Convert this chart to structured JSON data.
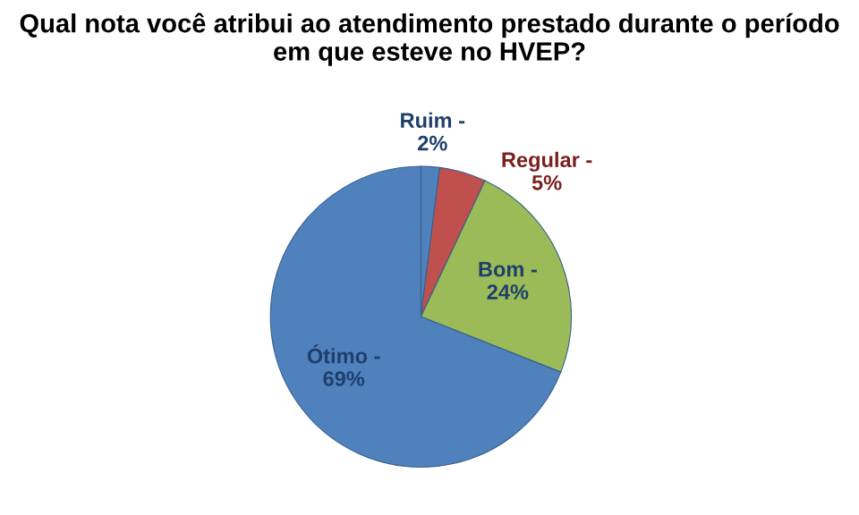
{
  "chart_data": {
    "type": "pie",
    "title": "Qual nota você atribui ao atendimento prestado durante o período em que esteve no HVEP?",
    "categories": [
      "Ruim -",
      "Regular -",
      "Bom -",
      "Ótimo -"
    ],
    "values": [
      2,
      5,
      24,
      69
    ],
    "value_labels": [
      "2%",
      "5%",
      "24%",
      "69%"
    ],
    "colors": [
      "#4f81bd",
      "#c0504d",
      "#9bbb59",
      "#4f81bd"
    ],
    "legend": false
  }
}
